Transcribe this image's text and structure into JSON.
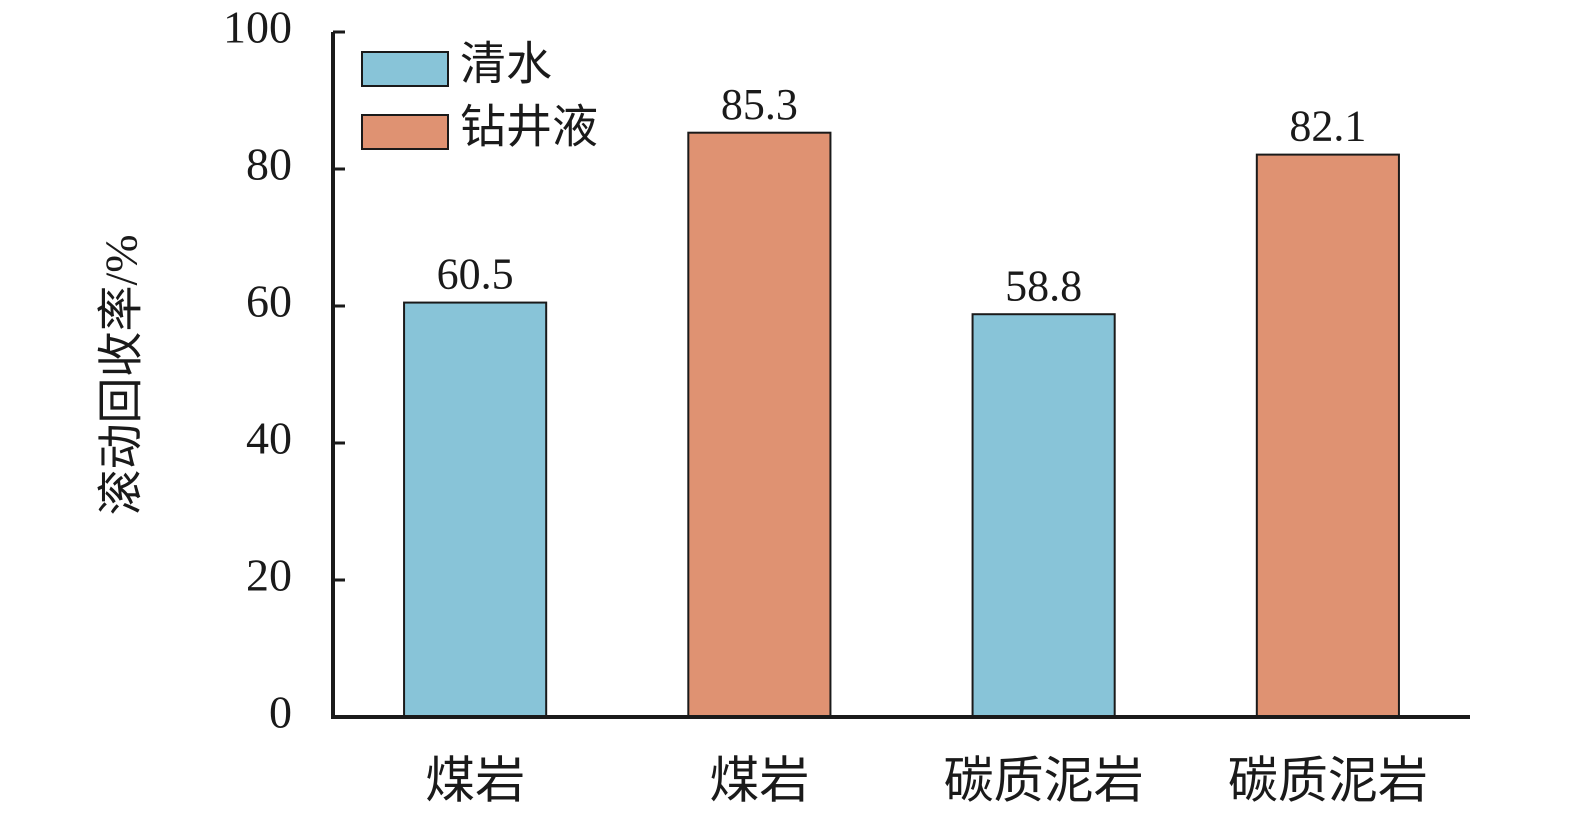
{
  "chart_data": {
    "type": "bar",
    "y_label": "滚动回收率/%",
    "categories": [
      "煤岩",
      "煤岩",
      "碳质泥岩",
      "碳质泥岩"
    ],
    "series": [
      {
        "name": "清水",
        "color": "#88c4d8",
        "values": [
          60.5,
          null,
          58.8,
          null
        ]
      },
      {
        "name": "钻井液",
        "color": "#df9272",
        "values": [
          null,
          85.3,
          null,
          82.1
        ]
      }
    ],
    "ylim": [
      0,
      100
    ],
    "yticks": [
      0,
      20,
      40,
      60,
      80,
      100
    ],
    "legend": "upper-left"
  }
}
